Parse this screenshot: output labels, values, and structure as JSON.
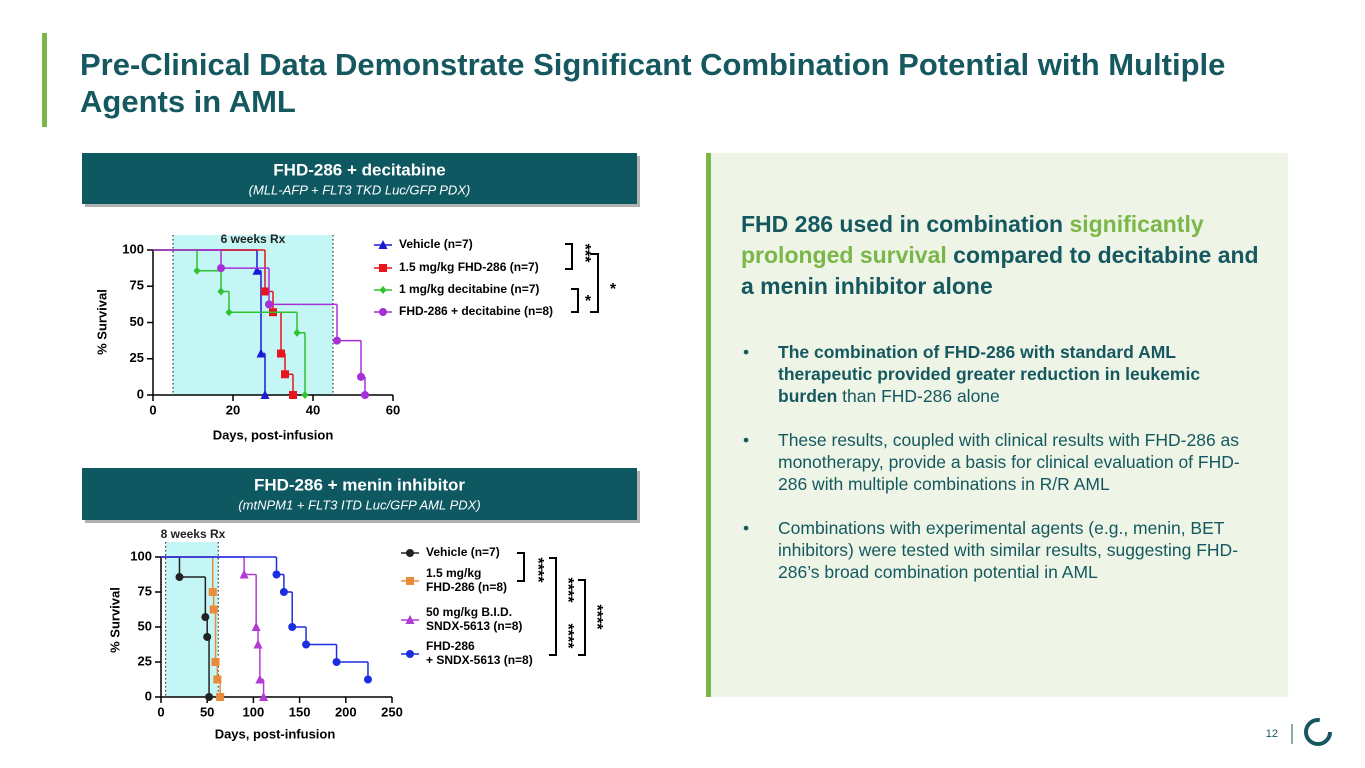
{
  "header": {
    "title": "Pre-Clinical Data Demonstrate Significant Combination Potential with Multiple Agents in AML"
  },
  "chart_data": [
    {
      "type": "survival",
      "title": "FHD-286 + decitabine",
      "subtitle": "(MLL-AFP + FLT3 TKD Luc/GFP PDX)",
      "x_label": "Days, post-infusion",
      "y_label": "% Survival",
      "xlim": [
        0,
        60
      ],
      "xticks": [
        0,
        20,
        40,
        60
      ],
      "ylim": [
        0,
        100
      ],
      "yticks": [
        0,
        25,
        50,
        75,
        100
      ],
      "rx_label": "6 weeks Rx",
      "rx_window": [
        5,
        45
      ],
      "series": [
        {
          "name": "Vehicle (n=7)",
          "color": "#1a1adb",
          "marker": "triangle",
          "x": [
            0,
            26,
            27,
            28
          ],
          "values": [
            100,
            85.7,
            28.6,
            0
          ]
        },
        {
          "name": "1.5 mg/kg FHD-286 (n=7)",
          "color": "#e8141e",
          "marker": "square",
          "x": [
            0,
            28,
            30,
            32,
            33,
            35
          ],
          "values": [
            100,
            71.4,
            57.1,
            28.6,
            14.3,
            0
          ]
        },
        {
          "name": "1 mg/kg decitabine (n=7)",
          "color": "#2ec22e",
          "marker": "diamond",
          "x": [
            0,
            11,
            17,
            19,
            36,
            38
          ],
          "values": [
            100,
            85.7,
            71.4,
            57.1,
            42.9,
            0
          ]
        },
        {
          "name": "FHD-286 + decitabine (n=8)",
          "color": "#a630d8",
          "marker": "circle",
          "x": [
            0,
            17,
            29,
            46,
            52,
            53
          ],
          "values": [
            100,
            87.5,
            62.5,
            37.5,
            12.5,
            0
          ]
        }
      ],
      "annotations": [
        "***",
        "*",
        "*"
      ]
    },
    {
      "type": "survival",
      "title": "FHD-286 + menin inhibitor",
      "subtitle": "(mtNPM1 + FLT3 ITD Luc/GFP AML PDX)",
      "x_label": "Days, post-infusion",
      "y_label": "% Survival",
      "xlim": [
        0,
        250
      ],
      "xticks": [
        0,
        50,
        100,
        150,
        200,
        250
      ],
      "ylim": [
        0,
        100
      ],
      "yticks": [
        0,
        25,
        50,
        75,
        100
      ],
      "rx_label": "8 weeks  Rx",
      "rx_window": [
        5,
        62
      ],
      "series": [
        {
          "name": "Vehicle (n=7)",
          "color": "#222222",
          "marker": "circle",
          "x": [
            0,
            20,
            48,
            50,
            52
          ],
          "values": [
            100,
            85.7,
            57.1,
            42.9,
            0
          ]
        },
        {
          "name": "1.5 mg/kg\nFHD-286 (n=8)",
          "color": "#e88b3a",
          "marker": "square",
          "x": [
            0,
            56,
            57,
            59,
            61,
            64
          ],
          "values": [
            100,
            75,
            62.5,
            25,
            12.5,
            0
          ]
        },
        {
          "name": "50 mg/kg B.I.D.\nSNDX-5613 (n=8)",
          "color": "#b43ad6",
          "marker": "triangle",
          "x": [
            0,
            90,
            103,
            105,
            107,
            111
          ],
          "values": [
            100,
            87.5,
            50,
            37.5,
            12.5,
            0
          ]
        },
        {
          "name": "FHD-286\n+ SNDX-5613 (n=8)",
          "color": "#1b2fe0",
          "marker": "circle",
          "x": [
            0,
            125,
            133,
            142,
            157,
            190,
            224
          ],
          "values": [
            100,
            87.5,
            75,
            50,
            37.5,
            25,
            12.5
          ]
        }
      ],
      "annotations": [
        "****",
        "****",
        "****",
        "****"
      ]
    }
  ],
  "panel": {
    "heading": [
      "FHD 286 used in combination ",
      "significantly prolonged survival",
      " compared to decitabine and a menin inhibitor alone"
    ],
    "bullets": [
      [
        "The combination of FHD-286 with standard AML therapeutic provided greater reduction in leukemic burden",
        " than FHD-286 alone"
      ],
      [
        "These results, coupled with clinical results with FHD-286 as monotherapy, provide a basis for clinical evaluation of FHD-286 with multiple combinations in R/R AML"
      ],
      [
        "Combinations with experimental agents (e.g., menin, BET inhibitors) were tested with similar results, suggesting FHD-286’s broad combination potential in AML"
      ]
    ]
  },
  "footer": {
    "page": "12"
  }
}
